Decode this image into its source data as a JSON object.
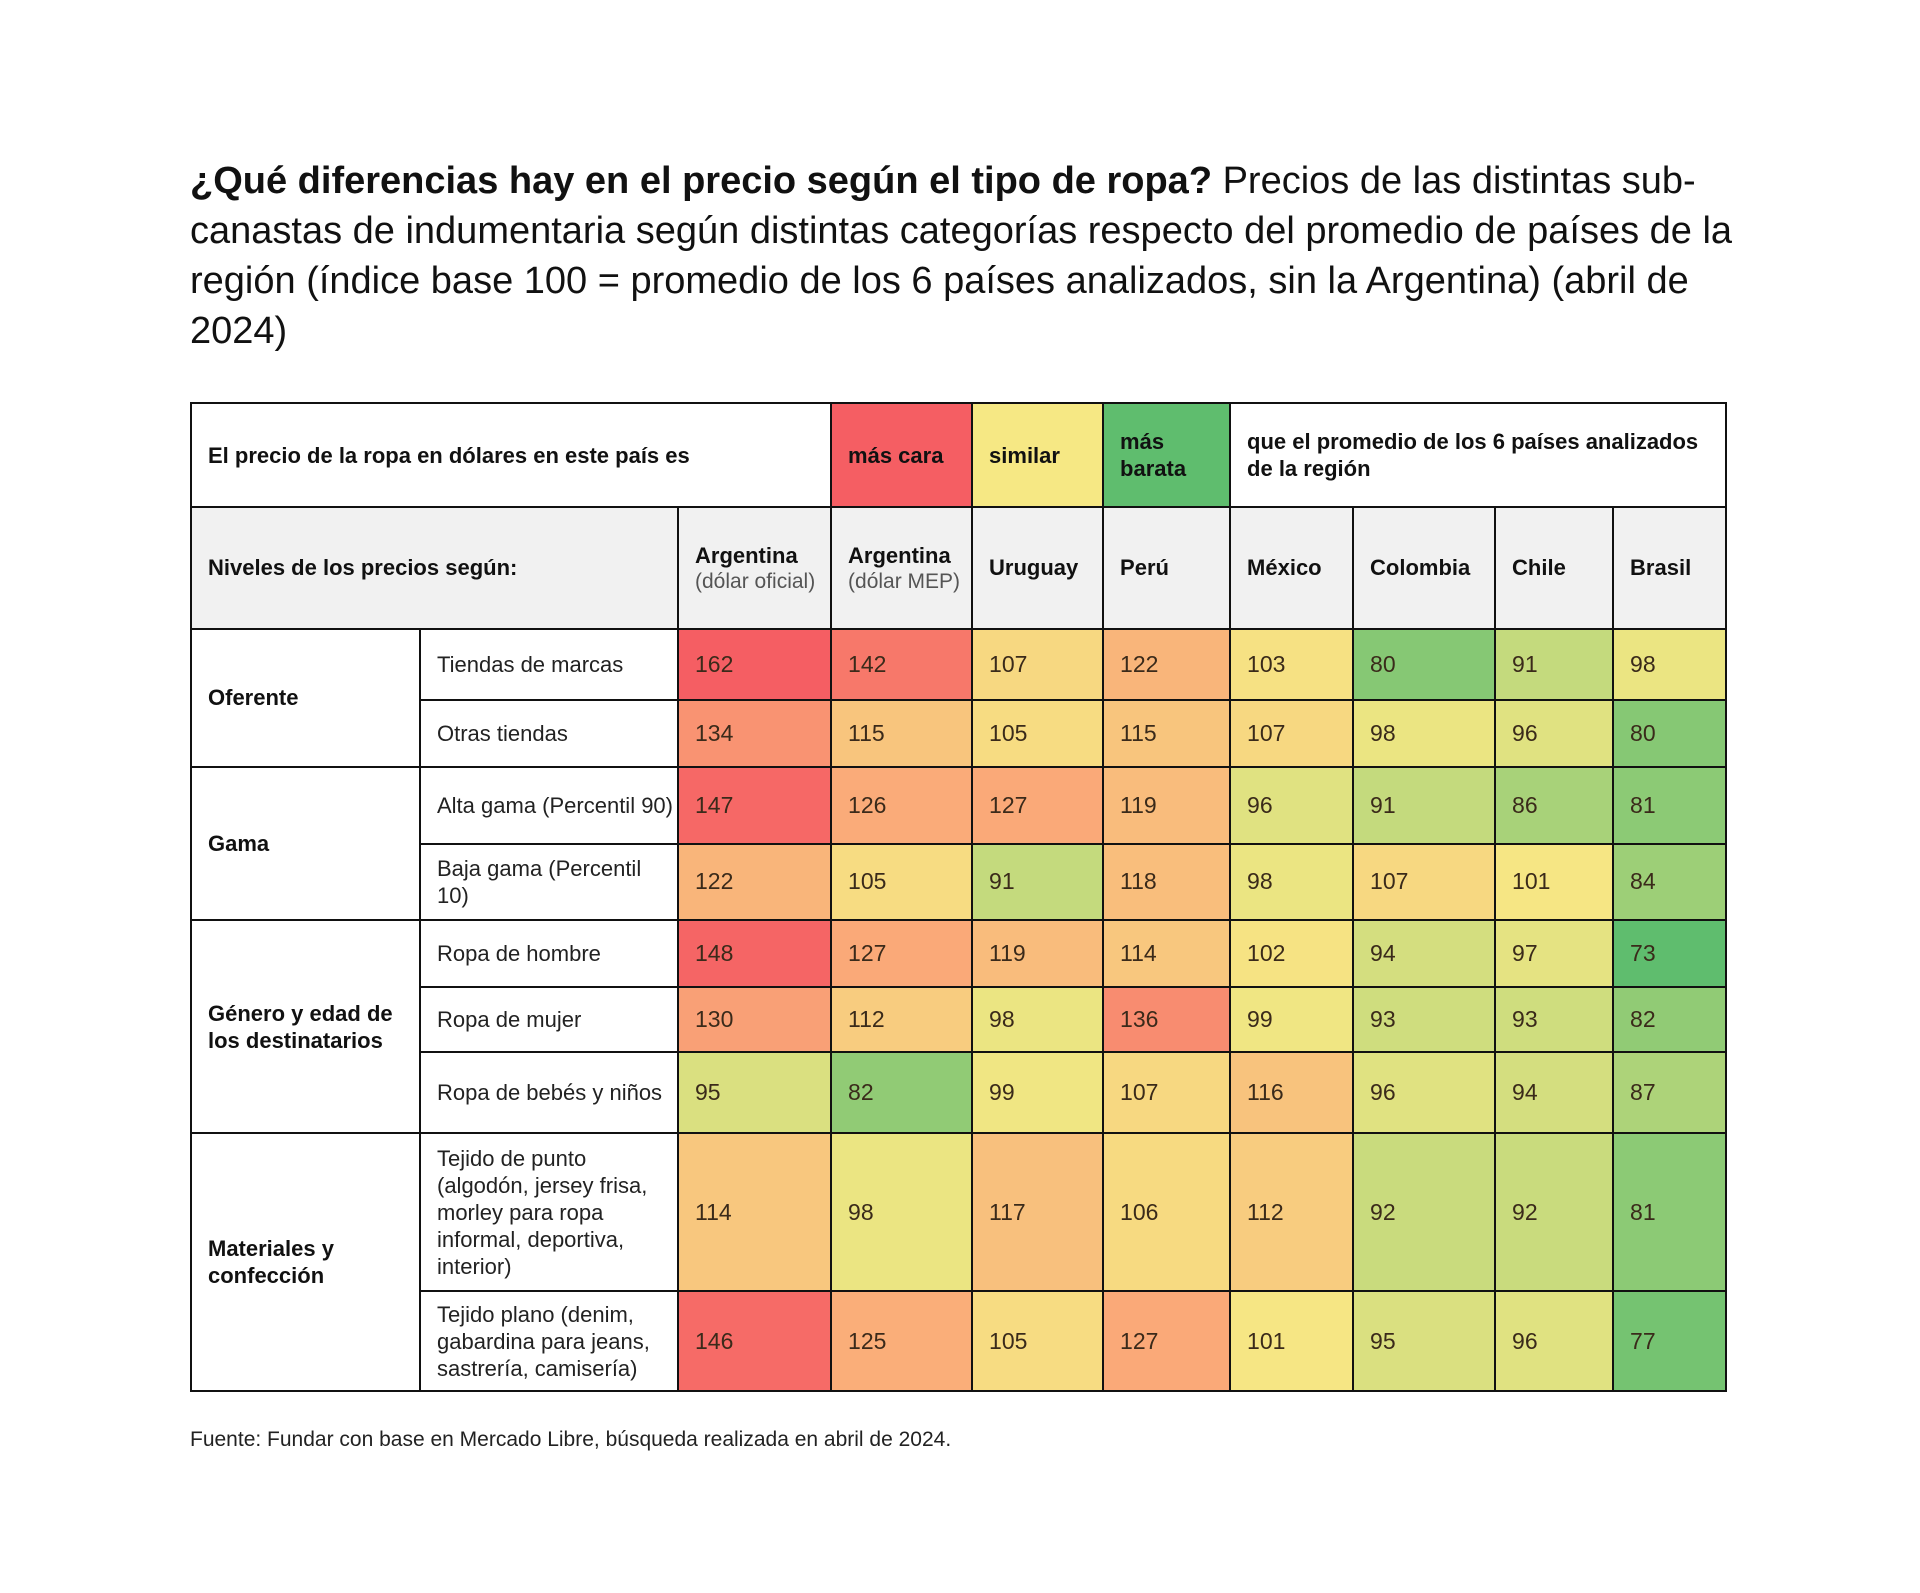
{
  "title": {
    "bold": "¿Qué diferencias hay en el precio según el tipo de ropa?",
    "rest": " Precios de las distintas sub-canastas de indumentaria según distintas categorías respecto del promedio de países de la región (índice base 100  = promedio de los 6 países analizados, sin la Argentina) (abril de 2024)"
  },
  "legend": {
    "intro": "El precio de la ropa en dólares en este país es",
    "more_expensive": "más cara",
    "similar": "similar",
    "cheaper": "más barata",
    "outro": "que el promedio de los 6 países analizados de la región",
    "colors": {
      "more_expensive": "#f55e63",
      "similar": "#f6e884",
      "cheaper": "#5fbd6e"
    }
  },
  "header": {
    "levels_label": "Niveles de los precios según:",
    "columns": [
      {
        "name": "Argentina",
        "note": "(dólar oficial)"
      },
      {
        "name": "Argentina",
        "note": "(dólar MEP)"
      },
      {
        "name": "Uruguay",
        "note": ""
      },
      {
        "name": "Perú",
        "note": ""
      },
      {
        "name": "México",
        "note": ""
      },
      {
        "name": "Colombia",
        "note": ""
      },
      {
        "name": "Chile",
        "note": ""
      },
      {
        "name": "Brasil",
        "note": ""
      }
    ]
  },
  "source": "Fuente: Fundar con base en Mercado Libre, búsqueda realizada en abril de 2024.",
  "chart_data": {
    "type": "heatmap",
    "title": "¿Qué diferencias hay en el precio según el tipo de ropa? Precios de las distintas sub-canastas de indumentaria según distintas categorías respecto del promedio de países de la región (índice base 100  = promedio de los 6 países analizados, sin la Argentina) (abril de 2024)",
    "columns": [
      "Argentina (dólar oficial)",
      "Argentina (dólar MEP)",
      "Uruguay",
      "Perú",
      "México",
      "Colombia",
      "Chile",
      "Brasil"
    ],
    "base_index": 100,
    "color_scale": {
      "low": "#5fbd6e",
      "mid": "#f6e884",
      "high": "#f55e63",
      "low_value": 73,
      "mid_value": 100,
      "high_value": 150
    },
    "groups": [
      {
        "name": "Oferente",
        "rows": [
          {
            "label": "Tiendas de marcas",
            "values": [
              162,
              142,
              107,
              122,
              103,
              80,
              91,
              98
            ]
          },
          {
            "label": "Otras tiendas",
            "values": [
              134,
              115,
              105,
              115,
              107,
              98,
              96,
              80
            ]
          }
        ]
      },
      {
        "name": "Gama",
        "rows": [
          {
            "label": "Alta gama (Percentil 90)",
            "values": [
              147,
              126,
              127,
              119,
              96,
              91,
              86,
              81
            ]
          },
          {
            "label": "Baja gama (Percentil 10)",
            "values": [
              122,
              105,
              91,
              118,
              98,
              107,
              101,
              84
            ]
          }
        ]
      },
      {
        "name": "Género y edad de los destinatarios",
        "rows": [
          {
            "label": "Ropa de hombre",
            "values": [
              148,
              127,
              119,
              114,
              102,
              94,
              97,
              73
            ]
          },
          {
            "label": "Ropa de mujer",
            "values": [
              130,
              112,
              98,
              136,
              99,
              93,
              93,
              82
            ]
          },
          {
            "label": "Ropa de bebés y niños",
            "values": [
              95,
              82,
              99,
              107,
              116,
              96,
              94,
              87
            ]
          }
        ]
      },
      {
        "name": "Materiales y confección",
        "rows": [
          {
            "label": "Tejido de punto (algodón, jersey frisa, morley para ropa informal, deportiva, interior)",
            "values": [
              114,
              98,
              117,
              106,
              112,
              92,
              92,
              81
            ]
          },
          {
            "label": "Tejido plano (denim, gabardina para jeans, sastrería, camisería)",
            "values": [
              146,
              125,
              105,
              127,
              101,
              95,
              96,
              77
            ]
          }
        ]
      }
    ]
  }
}
